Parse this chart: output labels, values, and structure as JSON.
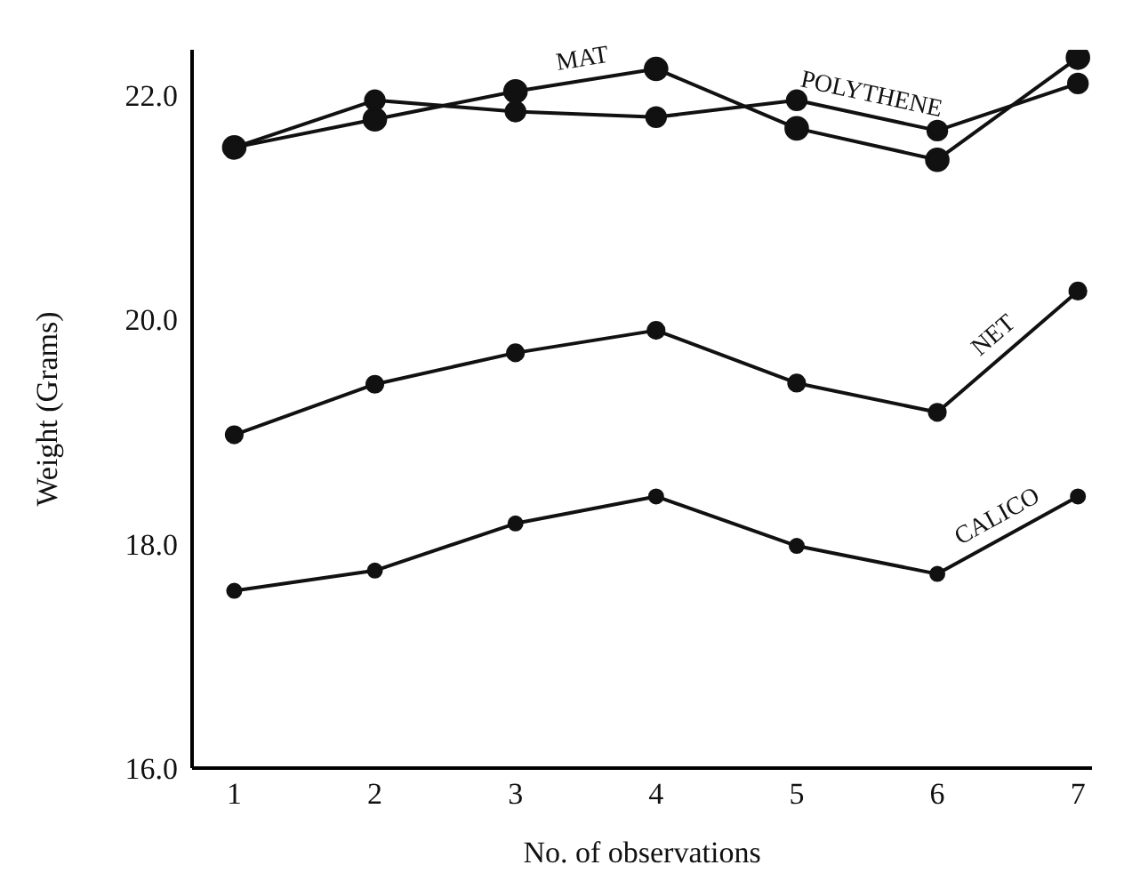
{
  "chart_data": {
    "type": "line",
    "xlabel": "No. of observations",
    "ylabel": "Weight (Grams)",
    "x": [
      1,
      2,
      3,
      4,
      5,
      6,
      7
    ],
    "xlim": [
      0.7,
      7.1
    ],
    "xticks": [
      1,
      2,
      3,
      4,
      5,
      6,
      7
    ],
    "ylim": [
      16,
      22.4
    ],
    "yticks": [
      {
        "value": 16,
        "label": "16.0"
      },
      {
        "value": 18,
        "label": "18.0"
      },
      {
        "value": 20,
        "label": "20.0"
      },
      {
        "value": 22,
        "label": "22.0"
      }
    ],
    "marker": "circle",
    "line_style": "solid",
    "grid": false,
    "legend": false,
    "series": [
      {
        "name": "MAT",
        "color": "#111111",
        "values": [
          21.53,
          21.78,
          22.03,
          22.23,
          21.7,
          21.42,
          22.33
        ]
      },
      {
        "name": "POLYTHENE",
        "color": "#111111",
        "values": [
          21.53,
          21.95,
          21.85,
          21.8,
          21.95,
          21.68,
          22.1
        ]
      },
      {
        "name": "NET",
        "color": "#111111",
        "values": [
          18.97,
          19.42,
          19.7,
          19.9,
          19.43,
          19.17,
          20.25
        ]
      },
      {
        "name": "CALICO",
        "color": "#111111",
        "values": [
          17.58,
          17.76,
          18.18,
          18.42,
          17.98,
          17.73,
          18.42
        ]
      }
    ]
  }
}
